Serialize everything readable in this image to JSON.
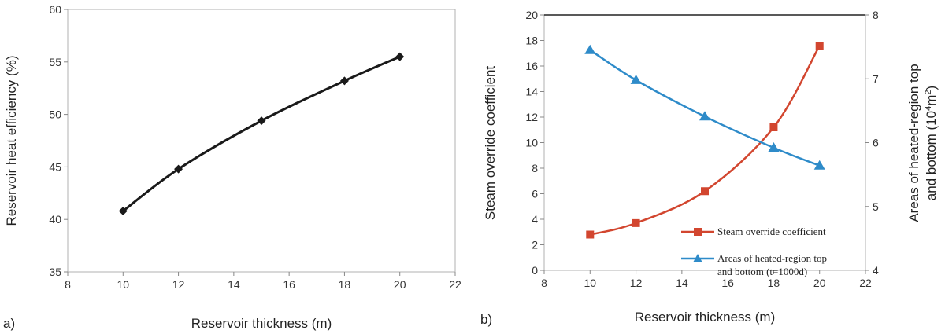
{
  "chart_data": [
    {
      "type": "line",
      "panel_label": "a)",
      "xlabel": "Reservoir thickness (m)",
      "ylabel": "Reservoir heat efficiency (%)",
      "xlim": [
        8,
        22
      ],
      "ylim": [
        35,
        60
      ],
      "xticks": [
        "8",
        "10",
        "12",
        "14",
        "16",
        "18",
        "20",
        "22"
      ],
      "yticks": [
        "35",
        "40",
        "45",
        "50",
        "55",
        "60"
      ],
      "series": [
        {
          "name": "Reservoir heat efficiency",
          "color": "#1a1a1a",
          "marker": "diamond",
          "x": [
            10,
            12,
            15,
            18,
            20
          ],
          "y": [
            40.8,
            44.8,
            49.4,
            53.2,
            55.5
          ]
        }
      ]
    },
    {
      "type": "line",
      "panel_label": "b)",
      "xlabel": "Reservoir thickness (m)",
      "ylabel": "Steam override coefficient",
      "y2label_line1": "Areas of heated-region top",
      "y2label_line2_pre": "and bottom (10",
      "y2label_sup": "4",
      "y2label_mid": "m",
      "y2label_sup2": "2",
      "y2label_post": ")",
      "xlim": [
        8,
        22
      ],
      "ylim": [
        0,
        20
      ],
      "y2lim": [
        4,
        8
      ],
      "xticks": [
        "8",
        "10",
        "12",
        "14",
        "16",
        "18",
        "20",
        "22"
      ],
      "yticks": [
        "0",
        "2",
        "4",
        "6",
        "8",
        "10",
        "12",
        "14",
        "16",
        "18",
        "20"
      ],
      "y2ticks": [
        "4",
        "5",
        "6",
        "7",
        "8"
      ],
      "series": [
        {
          "name": "Steam override coefficient",
          "color": "#d2462f",
          "marker": "square",
          "axis": "left",
          "x": [
            10,
            12,
            15,
            18,
            20
          ],
          "y": [
            2.8,
            3.7,
            6.2,
            11.2,
            17.6
          ]
        },
        {
          "name": "Areas of heated-region top and bottom (t=1000d)",
          "color": "#2e8bc9",
          "marker": "triangle",
          "axis": "right",
          "x": [
            10,
            12,
            15,
            18,
            20
          ],
          "y": [
            7.45,
            6.98,
            6.41,
            5.92,
            5.64
          ]
        }
      ],
      "legend": [
        {
          "line1": "Steam override coefficient",
          "line2": ""
        },
        {
          "line1": "Areas of heated-region top",
          "line2": "and bottom (t=1000d)"
        }
      ]
    }
  ]
}
